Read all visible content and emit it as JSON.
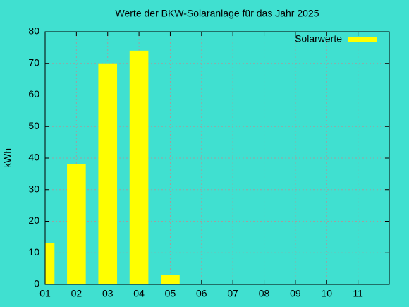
{
  "chart_data": {
    "type": "bar",
    "title": "Werte der BKW-Solaranlage für das Jahr 2025",
    "y_label": "kWh",
    "x": [
      1,
      2,
      3,
      4,
      5
    ],
    "series": [
      {
        "name": "Solarwerte",
        "color": "#ffff00",
        "values": [
          13,
          38,
          70,
          74,
          3
        ]
      }
    ],
    "xlim": [
      1,
      12
    ],
    "xticks": [
      {
        "value": 1,
        "label": "01"
      },
      {
        "value": 2,
        "label": "02"
      },
      {
        "value": 3,
        "label": "03"
      },
      {
        "value": 4,
        "label": "04"
      },
      {
        "value": 5,
        "label": "05"
      },
      {
        "value": 6,
        "label": "06"
      },
      {
        "value": 7,
        "label": "07"
      },
      {
        "value": 8,
        "label": "08"
      },
      {
        "value": 9,
        "label": "09"
      },
      {
        "value": 10,
        "label": "10"
      },
      {
        "value": 11,
        "label": "11"
      }
    ],
    "ylim": [
      0,
      80
    ],
    "yticks": [
      0,
      10,
      20,
      30,
      40,
      50,
      60,
      70,
      80
    ],
    "grid": true,
    "legend": "top-right"
  }
}
